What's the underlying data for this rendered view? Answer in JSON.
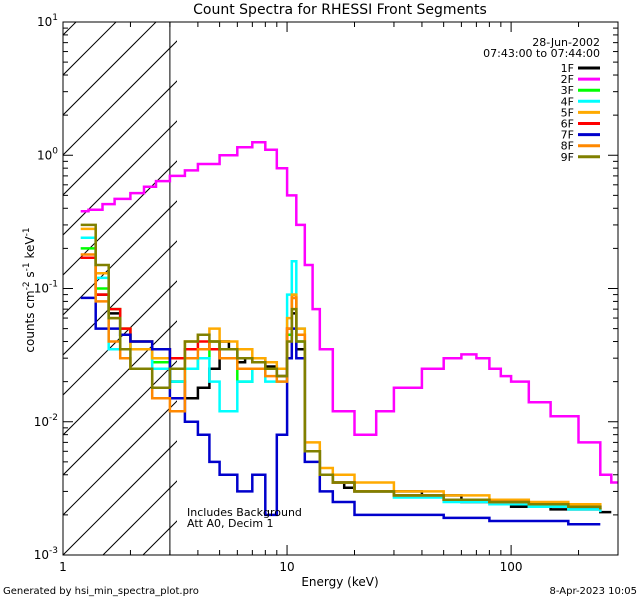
{
  "chart_data": {
    "type": "line",
    "title": "Count Spectra for RHESSI Front Segments",
    "xlabel": "Energy (keV)",
    "ylabel_base": "counts cm",
    "ylabel_exp1": "-2",
    "ylabel_mid": " s",
    "ylabel_exp2": "-1",
    "ylabel_end": " keV",
    "ylabel_exp3": "-1",
    "xscale": "log",
    "yscale": "log",
    "xlim": [
      1,
      300
    ],
    "ylim": [
      0.001,
      10
    ],
    "x_ticks": [
      {
        "value": 1,
        "label": "1"
      },
      {
        "value": 10,
        "label": "10"
      },
      {
        "value": 100,
        "label": "100"
      }
    ],
    "y_ticks": [
      {
        "value": 0.001,
        "base": "10",
        "exp": "-3"
      },
      {
        "value": 0.01,
        "base": "10",
        "exp": "-2"
      },
      {
        "value": 0.1,
        "base": "10",
        "exp": "-1"
      },
      {
        "value": 1,
        "base": "10",
        "exp": "0"
      },
      {
        "value": 10,
        "base": "10",
        "exp": "1"
      }
    ],
    "excluded_region_keV": [
      1,
      3
    ],
    "legend_date": "28-Jun-2002",
    "legend_time": "07:43:00 to 07:44:00",
    "notes": [
      "Includes Background",
      "Att A0, Decim 1"
    ],
    "series": [
      {
        "name": "1F",
        "color": "#000000",
        "x": [
          1.2,
          1.4,
          1.6,
          1.8,
          2.0,
          2.5,
          3,
          3.5,
          4,
          4.5,
          5,
          5.5,
          6,
          6.5,
          7,
          8,
          9,
          10,
          10.5,
          11,
          12,
          14,
          16,
          18,
          20,
          30,
          40,
          60,
          80,
          100,
          150,
          200,
          250,
          280
        ],
        "y": [
          0.17,
          0.09,
          0.065,
          0.045,
          0.035,
          0.03,
          0.02,
          0.015,
          0.018,
          0.025,
          0.04,
          0.035,
          0.028,
          0.03,
          0.03,
          0.026,
          0.022,
          0.045,
          0.065,
          0.035,
          0.006,
          0.004,
          0.0035,
          0.0032,
          0.003,
          0.003,
          0.0028,
          0.0025,
          0.0025,
          0.0023,
          0.0022,
          0.0022,
          0.0021,
          0.0021
        ]
      },
      {
        "name": "2F",
        "color": "#ff00ff",
        "x": [
          1.2,
          1.3,
          1.5,
          1.7,
          2,
          2.3,
          2.6,
          3,
          3.5,
          4,
          5,
          6,
          7,
          8,
          9,
          10,
          11,
          12,
          13,
          14,
          16,
          20,
          25,
          30,
          40,
          50,
          60,
          70,
          80,
          90,
          100,
          120,
          150,
          200,
          250,
          280,
          300
        ],
        "y": [
          0.38,
          0.39,
          0.43,
          0.47,
          0.52,
          0.58,
          0.64,
          0.7,
          0.77,
          0.86,
          1.0,
          1.15,
          1.25,
          1.1,
          0.8,
          0.5,
          0.3,
          0.15,
          0.07,
          0.035,
          0.012,
          0.008,
          0.012,
          0.018,
          0.025,
          0.03,
          0.032,
          0.03,
          0.025,
          0.022,
          0.02,
          0.014,
          0.011,
          0.007,
          0.004,
          0.0035,
          0.0035
        ]
      },
      {
        "name": "3F",
        "color": "#00ff00",
        "x": [
          1.2,
          1.4,
          1.6,
          1.8,
          2,
          2.5,
          3,
          3.5,
          4,
          4.5,
          5,
          6,
          7,
          8,
          9,
          10,
          10.5,
          11,
          12,
          14,
          16,
          20,
          30,
          50,
          80,
          120,
          180,
          250
        ],
        "y": [
          0.2,
          0.1,
          0.07,
          0.05,
          0.04,
          0.028,
          0.02,
          0.025,
          0.03,
          0.04,
          0.035,
          0.02,
          0.025,
          0.025,
          0.022,
          0.045,
          0.09,
          0.04,
          0.006,
          0.004,
          0.0035,
          0.003,
          0.0028,
          0.0026,
          0.0025,
          0.0024,
          0.0023,
          0.0022
        ]
      },
      {
        "name": "4F",
        "color": "#00ffff",
        "x": [
          1.2,
          1.4,
          1.6,
          1.8,
          2,
          2.5,
          3,
          3.5,
          4,
          4.5,
          5,
          6,
          7,
          8,
          9,
          10,
          10.5,
          11,
          12,
          14,
          16,
          20,
          30,
          50,
          80,
          120,
          180,
          250
        ],
        "y": [
          0.24,
          0.12,
          0.035,
          0.045,
          0.035,
          0.025,
          0.02,
          0.025,
          0.03,
          0.02,
          0.012,
          0.02,
          0.025,
          0.02,
          0.02,
          0.09,
          0.16,
          0.05,
          0.006,
          0.004,
          0.0035,
          0.003,
          0.0027,
          0.0025,
          0.0024,
          0.0023,
          0.0022,
          0.0021
        ]
      },
      {
        "name": "5F",
        "color": "#ffaa00",
        "x": [
          1.2,
          1.4,
          1.6,
          1.8,
          2,
          2.5,
          3,
          3.5,
          4,
          4.5,
          5,
          6,
          7,
          8,
          9,
          10,
          10.5,
          11,
          12,
          14,
          16,
          20,
          30,
          50,
          80,
          120,
          180,
          250
        ],
        "y": [
          0.28,
          0.13,
          0.06,
          0.05,
          0.035,
          0.03,
          0.025,
          0.04,
          0.045,
          0.05,
          0.04,
          0.035,
          0.03,
          0.028,
          0.025,
          0.06,
          0.09,
          0.05,
          0.007,
          0.0045,
          0.004,
          0.0035,
          0.003,
          0.0028,
          0.0026,
          0.0025,
          0.0024,
          0.0023
        ]
      },
      {
        "name": "6F",
        "color": "#ff0000",
        "x": [
          1.2,
          1.4,
          1.6,
          1.8,
          2,
          2.5,
          3,
          3.5,
          4,
          4.5,
          5,
          6,
          7,
          8,
          9,
          10,
          10.5,
          11,
          12,
          14,
          16,
          20,
          30,
          50,
          80,
          120,
          180,
          250
        ],
        "y": [
          0.17,
          0.09,
          0.07,
          0.05,
          0.04,
          0.035,
          0.03,
          0.035,
          0.04,
          0.035,
          0.03,
          0.03,
          0.028,
          0.025,
          0.022,
          0.05,
          0.085,
          0.045,
          0.006,
          0.004,
          0.0035,
          0.003,
          0.0028,
          0.0026,
          0.0025,
          0.0024,
          0.0023,
          0.0022
        ]
      },
      {
        "name": "7F",
        "color": "#0000cc",
        "x": [
          1.2,
          1.4,
          1.6,
          1.8,
          2,
          2.5,
          3,
          3.5,
          4,
          4.5,
          5,
          6,
          7,
          8,
          9,
          10,
          10.5,
          11,
          12,
          14,
          16,
          20,
          30,
          50,
          80,
          120,
          180,
          250
        ],
        "y": [
          0.085,
          0.05,
          0.05,
          0.045,
          0.04,
          0.035,
          0.015,
          0.01,
          0.008,
          0.005,
          0.004,
          0.003,
          0.004,
          0.002,
          0.008,
          0.03,
          0.05,
          0.03,
          0.005,
          0.003,
          0.0025,
          0.002,
          0.002,
          0.0019,
          0.0018,
          0.0018,
          0.0017,
          0.0017
        ]
      },
      {
        "name": "8F",
        "color": "#ff8800",
        "x": [
          1.2,
          1.4,
          1.6,
          1.8,
          2,
          2.5,
          3,
          3.5,
          4,
          4.5,
          5,
          6,
          7,
          8,
          9,
          10,
          10.5,
          11,
          12,
          14,
          16,
          20,
          30,
          50,
          80,
          120,
          180,
          250
        ],
        "y": [
          0.18,
          0.08,
          0.04,
          0.03,
          0.025,
          0.015,
          0.012,
          0.03,
          0.035,
          0.04,
          0.03,
          0.025,
          0.025,
          0.022,
          0.02,
          0.05,
          0.085,
          0.045,
          0.006,
          0.004,
          0.0035,
          0.003,
          0.0028,
          0.0026,
          0.0025,
          0.0024,
          0.0023,
          0.0022
        ]
      },
      {
        "name": "9F",
        "color": "#808000",
        "x": [
          1.2,
          1.4,
          1.6,
          1.8,
          2,
          2.5,
          3,
          3.5,
          4,
          4.5,
          5,
          6,
          7,
          8,
          9,
          10,
          10.5,
          11,
          12,
          14,
          16,
          20,
          30,
          50,
          80,
          120,
          180,
          250
        ],
        "y": [
          0.3,
          0.15,
          0.06,
          0.035,
          0.025,
          0.018,
          0.025,
          0.04,
          0.045,
          0.04,
          0.035,
          0.03,
          0.028,
          0.025,
          0.022,
          0.04,
          0.07,
          0.04,
          0.006,
          0.004,
          0.0035,
          0.003,
          0.0028,
          0.0026,
          0.0025,
          0.0024,
          0.0023,
          0.0022
        ]
      }
    ]
  },
  "footer": {
    "generated_by": "Generated by hsi_min_spectra_plot.pro",
    "date": "8-Apr-2023 10:05"
  }
}
